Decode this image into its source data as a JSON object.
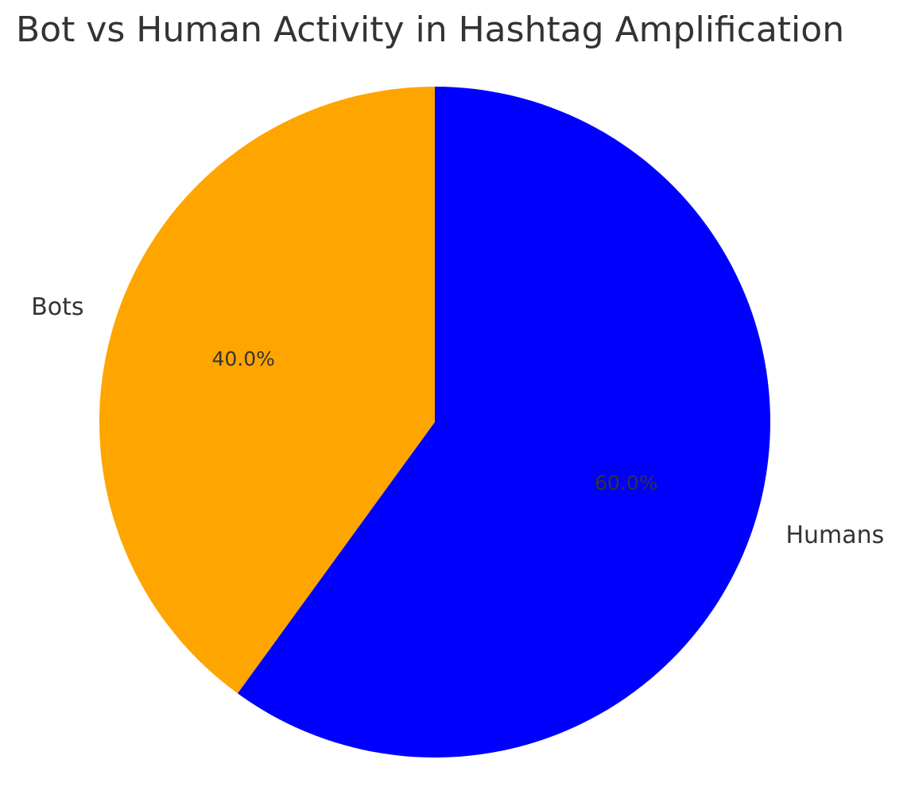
{
  "chart_data": {
    "type": "pie",
    "title": "Bot vs Human Activity in Hashtag Amplification",
    "categories": [
      "Bots",
      "Humans"
    ],
    "values": [
      40,
      60
    ],
    "value_labels": [
      "40.0%",
      "60.0%"
    ],
    "colors": [
      "#ffa500",
      "#0000ff"
    ],
    "start_angle": 90
  }
}
